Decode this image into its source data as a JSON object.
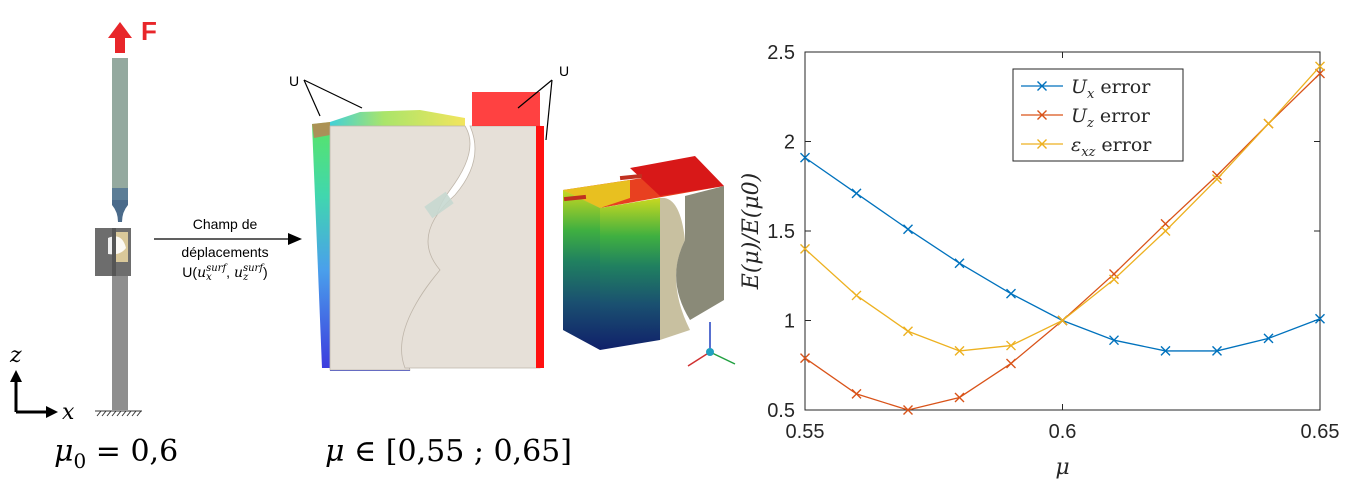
{
  "left": {
    "force_label": "F",
    "axis_z": "z",
    "axis_x": "x",
    "mu0_symbol": "μ",
    "mu0_sub": "0",
    "mu0_value": " = 0,6"
  },
  "arrow_text": {
    "line1": "Champ de",
    "line2": "déplacements",
    "line3_prefix": "U(",
    "ux_base": "u",
    "ux_sub": "x",
    "ux_sup": "surf",
    "comma": ", ",
    "uz_base": "u",
    "uz_sub": "z",
    "uz_sup": "surf",
    "line3_suffix": ")"
  },
  "middle": {
    "u_label_left": "U",
    "u_label_right": "U",
    "mu_range_symbol": "μ",
    "mu_range_text": " ∈ [0,55 ; 0,65]"
  },
  "colors": {
    "ux": "#0072BD",
    "uz": "#D95319",
    "exz": "#EDB120",
    "force": "#e8262a"
  },
  "chart_data": {
    "type": "line",
    "xlabel": "μ",
    "ylabel": "E(μ)/E(μ0)",
    "xlim": [
      0.55,
      0.65
    ],
    "ylim": [
      0.5,
      2.5
    ],
    "xticks": [
      "0.55",
      "0.6",
      "0.65"
    ],
    "yticks": [
      "0.5",
      "1",
      "1.5",
      "2",
      "2.5"
    ],
    "legend_position": "top-right",
    "grid": false,
    "x": [
      0.55,
      0.56,
      0.57,
      0.58,
      0.59,
      0.6,
      0.61,
      0.62,
      0.63,
      0.64,
      0.65
    ],
    "series": [
      {
        "name": "U_x error",
        "name_base": "U",
        "name_sub": "x",
        "name_suffix": " error",
        "color": "#0072BD",
        "values": [
          1.91,
          1.71,
          1.51,
          1.32,
          1.15,
          1.0,
          0.89,
          0.83,
          0.83,
          0.9,
          1.01
        ]
      },
      {
        "name": "U_z error",
        "name_base": "U",
        "name_sub": "z",
        "name_suffix": " error",
        "color": "#D95319",
        "values": [
          0.79,
          0.59,
          0.5,
          0.57,
          0.76,
          1.0,
          1.26,
          1.54,
          1.81,
          2.1,
          2.38
        ]
      },
      {
        "name": "ε_xz error",
        "name_base": "ε",
        "name_sub": "xz",
        "name_suffix": " error",
        "color": "#EDB120",
        "values": [
          1.4,
          1.14,
          0.94,
          0.83,
          0.86,
          1.0,
          1.23,
          1.5,
          1.79,
          2.1,
          2.42
        ]
      }
    ]
  }
}
